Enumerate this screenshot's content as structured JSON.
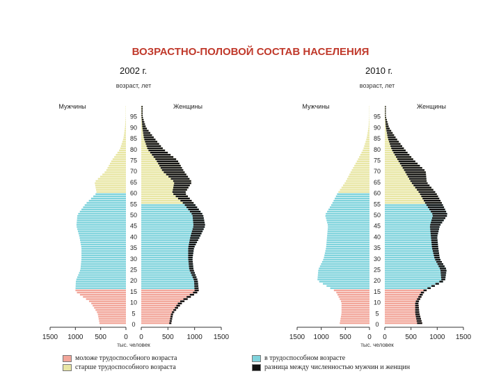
{
  "title": "ВОЗРАСТНО-ПОЛОВОЙ СОСТАВ НАСЕЛЕНИЯ",
  "colors": {
    "title": "#c0392b",
    "young": "#f2a69a",
    "working": "#7fd3dc",
    "old": "#e8e6a4",
    "difference": "#111111",
    "axis": "#333333"
  },
  "legend": [
    {
      "label": "моложе трудоспособного возраста",
      "color": "#f2a69a"
    },
    {
      "label": "старше трудоспособного возраста",
      "color": "#e8e6a4"
    },
    {
      "label": "в трудоспособном возрасте",
      "color": "#7fd3dc"
    },
    {
      "label": "разница между численностью мужчин и женщин",
      "color": "#111111"
    }
  ],
  "chart_data": [
    {
      "type": "bar",
      "subtype": "population-pyramid",
      "title": "2002 г.",
      "axis_title": "возраст, лет",
      "left_label": "Мужчины",
      "right_label": "Женщины",
      "xlabel": "тыс. человек",
      "xticks_left": [
        "1500",
        "1000",
        "500",
        "0"
      ],
      "xticks_right": [
        "0",
        "500",
        "1000",
        "1500"
      ],
      "xlim": [
        0,
        1500
      ],
      "ages": [
        "0",
        "5",
        "10",
        "15",
        "20",
        "25",
        "30",
        "35",
        "40",
        "45",
        "50",
        "55",
        "60",
        "65",
        "70",
        "75",
        "80",
        "85",
        "90",
        "95"
      ],
      "age_groups_x5": [
        0,
        5,
        10,
        15,
        20,
        25,
        30,
        35,
        40,
        45,
        50,
        55,
        60,
        65,
        70,
        75,
        80,
        85,
        90,
        95
      ],
      "men": [
        520,
        560,
        700,
        1000,
        990,
        900,
        880,
        880,
        920,
        980,
        960,
        800,
        580,
        620,
        400,
        280,
        120,
        50,
        20,
        5
      ],
      "women": [
        560,
        600,
        780,
        1080,
        1060,
        980,
        960,
        990,
        1100,
        1200,
        1160,
        1000,
        820,
        950,
        800,
        680,
        420,
        250,
        90,
        25
      ],
      "groups": {
        "young_below_age": 16,
        "old_from_age_men": 60,
        "old_from_age_women": 55
      }
    },
    {
      "type": "bar",
      "subtype": "population-pyramid",
      "title": "2010 г.",
      "axis_title": "возраст, лет",
      "left_label": "Мужчины",
      "right_label": "Женщины",
      "xlabel": "тыс. человек",
      "xticks_left": [
        "1500",
        "1000",
        "500",
        "0"
      ],
      "xticks_right": [
        "0",
        "500",
        "1000",
        "1500"
      ],
      "xlim": [
        0,
        1500
      ],
      "ages": [
        "0",
        "5",
        "10",
        "15",
        "20",
        "25",
        "30",
        "35",
        "40",
        "45",
        "50",
        "55",
        "60",
        "65",
        "70",
        "75",
        "80",
        "85",
        "90",
        "95"
      ],
      "age_groups_x5": [
        0,
        5,
        10,
        15,
        20,
        25,
        30,
        35,
        40,
        45,
        50,
        55,
        60,
        65,
        70,
        75,
        80,
        85,
        90,
        95
      ],
      "men": [
        620,
        580,
        580,
        700,
        1080,
        1060,
        950,
        900,
        880,
        860,
        920,
        780,
        660,
        500,
        380,
        250,
        130,
        60,
        20,
        5
      ],
      "women": [
        720,
        660,
        640,
        760,
        1150,
        1180,
        1050,
        1020,
        1000,
        1050,
        1200,
        1100,
        980,
        800,
        780,
        560,
        380,
        220,
        80,
        20
      ],
      "groups": {
        "young_below_age": 16,
        "old_from_age_men": 60,
        "old_from_age_women": 55
      }
    }
  ]
}
